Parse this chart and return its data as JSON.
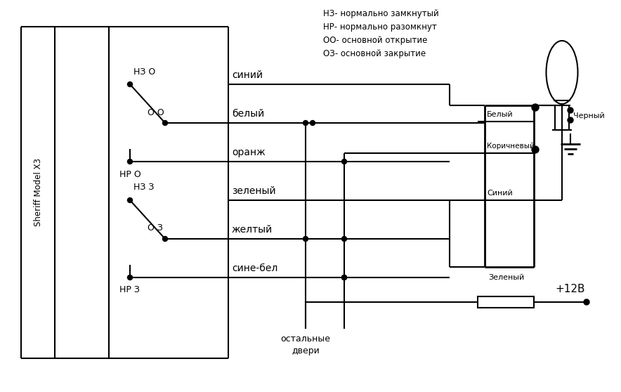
{
  "bg_color": "#ffffff",
  "legend_text": "НЗ- нормально замкнутый\nНР- нормально разомкнут\nОО- основной открытие\nОЗ- основной закрытие",
  "sheriff_label": "Sheriff Model X3",
  "voltage_label": "+12В",
  "bottom_label1": "остальные",
  "bottom_label2": "двери"
}
